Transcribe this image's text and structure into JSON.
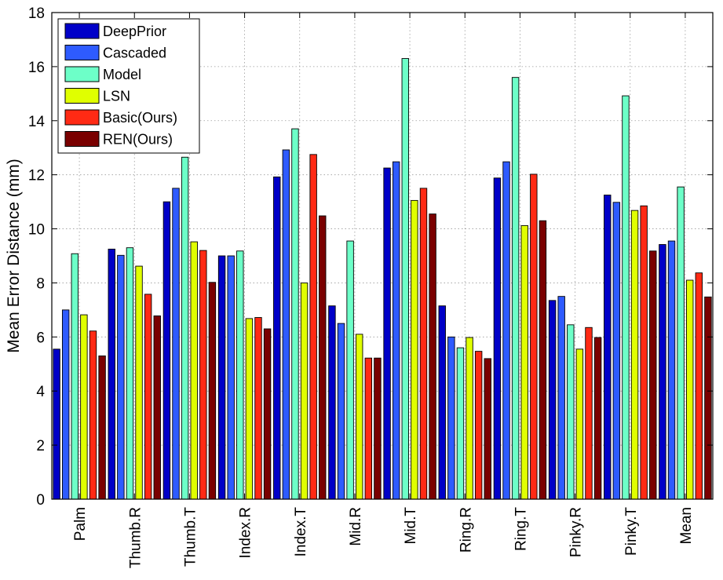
{
  "chart_data": {
    "type": "bar",
    "title": "",
    "xlabel": "",
    "ylabel": "Mean Error Distance (mm)",
    "ylim": [
      0,
      18
    ],
    "yticks": [
      0,
      2,
      4,
      6,
      8,
      10,
      12,
      14,
      16,
      18
    ],
    "grid": true,
    "legend_position": "top-left",
    "categories": [
      "Palm",
      "Thumb.R",
      "Thumb.T",
      "Index.R",
      "Index.T",
      "Mid.R",
      "Mid.T",
      "Ring.R",
      "Ring.T",
      "Pinky.R",
      "Pinky.T",
      "Mean"
    ],
    "series": [
      {
        "name": "DeepPrior",
        "color": "#0000c8",
        "values": [
          5.55,
          9.25,
          11.0,
          9.0,
          11.92,
          7.15,
          12.25,
          7.15,
          11.88,
          7.35,
          11.25,
          9.42
        ]
      },
      {
        "name": "Cascaded",
        "color": "#2e5bff",
        "values": [
          7.0,
          9.02,
          11.5,
          9.0,
          12.92,
          6.5,
          12.48,
          6.0,
          12.48,
          7.5,
          10.98,
          9.55
        ]
      },
      {
        "name": "Model",
        "color": "#6dffc8",
        "values": [
          9.08,
          9.3,
          12.65,
          9.18,
          13.7,
          9.55,
          16.3,
          5.6,
          15.6,
          6.45,
          14.92,
          11.55
        ]
      },
      {
        "name": "LSN",
        "color": "#e0ff00",
        "values": [
          6.82,
          8.62,
          9.52,
          6.68,
          8.0,
          6.1,
          11.05,
          5.98,
          10.12,
          5.55,
          10.68,
          8.1
        ]
      },
      {
        "name": "Basic(Ours)",
        "color": "#ff2a14",
        "values": [
          6.22,
          7.58,
          9.2,
          6.72,
          12.75,
          5.22,
          11.5,
          5.47,
          12.02,
          6.35,
          10.85,
          8.37
        ]
      },
      {
        "name": "REN(Ours)",
        "color": "#7a0000",
        "values": [
          5.3,
          6.78,
          8.02,
          6.3,
          10.48,
          5.22,
          10.55,
          5.2,
          10.3,
          5.98,
          9.18,
          7.48
        ]
      }
    ]
  }
}
